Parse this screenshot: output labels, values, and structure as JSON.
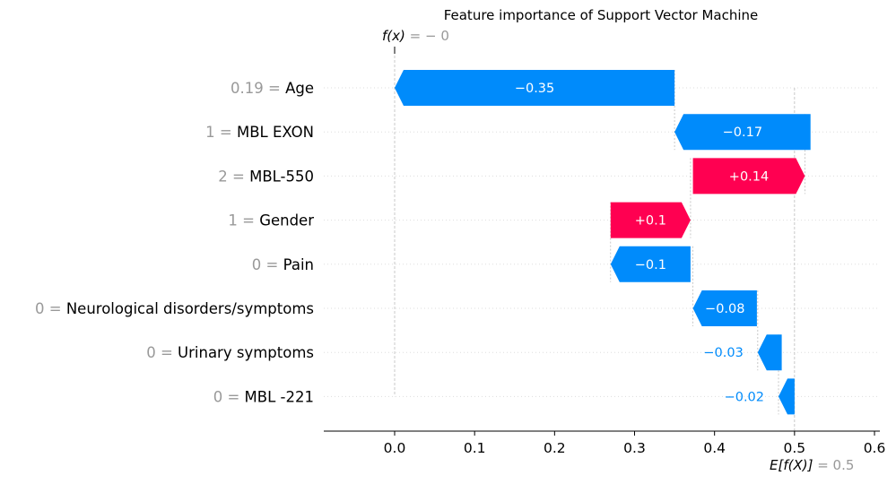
{
  "chart_data": {
    "type": "waterfall",
    "title": "Feature importance of Support Vector Machine",
    "fx_label_main": "f(x)",
    "fx_label_suffix": " = − 0",
    "efx_label_main": "E[f(X)]",
    "efx_label_suffix": " = 0.5",
    "xlim": [
      -0.09,
      0.61
    ],
    "xticks": [
      0.0,
      0.1,
      0.2,
      0.3,
      0.4,
      0.5,
      0.6
    ],
    "xtick_labels": [
      "0.0",
      "0.1",
      "0.2",
      "0.3",
      "0.4",
      "0.5",
      "0.6"
    ],
    "base_value": 0.5,
    "output_value": 0.0,
    "features": [
      {
        "value_text": "0.19",
        "name": "Age",
        "contribution": -0.35,
        "label": "−0.35",
        "start": 0.35
      },
      {
        "value_text": "1",
        "name": "MBL EXON",
        "contribution": -0.17,
        "label": "−0.17",
        "start": 0.52
      },
      {
        "value_text": "2",
        "name": "MBL-550",
        "contribution": 0.14,
        "label": "+0.14",
        "start": 0.373
      },
      {
        "value_text": "1",
        "name": "Gender",
        "contribution": 0.1,
        "label": "+0.1",
        "start": 0.27
      },
      {
        "value_text": "0",
        "name": "Pain",
        "contribution": -0.1,
        "label": "−0.1",
        "start": 0.37
      },
      {
        "value_text": "0",
        "name": "Neurological disorders/symptoms",
        "contribution": -0.08,
        "label": "−0.08",
        "start": 0.453
      },
      {
        "value_text": "0",
        "name": "Urinary symptoms",
        "contribution": -0.03,
        "label": "−0.03",
        "start": 0.484
      },
      {
        "value_text": "0",
        "name": "MBL -221",
        "contribution": -0.02,
        "label": "−0.02",
        "start": 0.5
      }
    ],
    "colors": {
      "positive": "#ff0051",
      "negative": "#008bfb",
      "value_grey": "#999999",
      "grid": "#dddddd",
      "ref_line": "#bbbbbb",
      "text": "#000000"
    }
  }
}
